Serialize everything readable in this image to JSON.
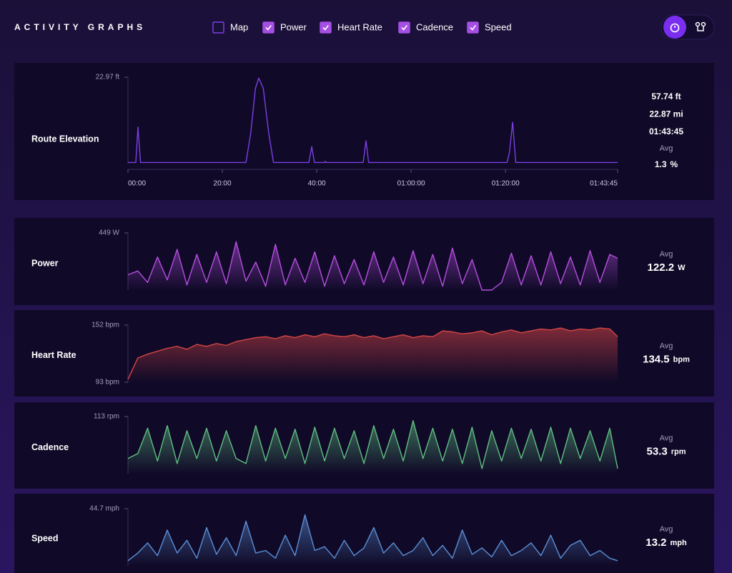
{
  "header": {
    "title": "ACTIVITY GRAPHS"
  },
  "filters": [
    {
      "label": "Map",
      "checked": false
    },
    {
      "label": "Power",
      "checked": true
    },
    {
      "label": "Heart Rate",
      "checked": true
    },
    {
      "label": "Cadence",
      "checked": true
    },
    {
      "label": "Speed",
      "checked": true
    }
  ],
  "chart_data": [
    {
      "type": "line",
      "label": "Route Elevation",
      "color": "#7b3fe4",
      "x": [
        0,
        100,
        127,
        160,
        250,
        1500,
        1560,
        1620,
        1663,
        1720,
        1790,
        1850,
        2300,
        2336,
        2370,
        2500,
        2510,
        2520,
        2990,
        3026,
        3060,
        4820,
        4850,
        4890,
        4930,
        6225
      ],
      "values": [
        0.3,
        0.3,
        9.7,
        0.3,
        0.3,
        0.3,
        8,
        20,
        22.7,
        20,
        8,
        0.3,
        0.3,
        4.5,
        0.3,
        0.3,
        0.6,
        0.3,
        0.3,
        6.1,
        0.3,
        0.3,
        3,
        11,
        0.3,
        0.3
      ],
      "xlim": [
        0,
        6225
      ],
      "xticks": [
        {
          "value": 0,
          "label": "00:00"
        },
        {
          "value": 1200,
          "label": "20:00"
        },
        {
          "value": 2400,
          "label": "40:00"
        },
        {
          "value": 3600,
          "label": "01:00:00"
        },
        {
          "value": 4800,
          "label": "01:20:00"
        },
        {
          "value": 6225,
          "label": "01:43:45"
        }
      ],
      "ylim": [
        0,
        22.97
      ],
      "yticks": [
        {
          "value": 22.97,
          "label": "22.97 ft"
        }
      ],
      "stats": [
        "57.74 ft",
        "22.87 mi",
        "01:43:45"
      ],
      "avg_label": "Avg",
      "avg": {
        "value": 1.3,
        "unit": "%"
      }
    },
    {
      "type": "line",
      "label": "Power",
      "color": "#b64ee0",
      "x": [
        0,
        125,
        250,
        375,
        500,
        625,
        750,
        875,
        1000,
        1125,
        1250,
        1375,
        1500,
        1625,
        1750,
        1875,
        2000,
        2125,
        2250,
        2375,
        2500,
        2625,
        2750,
        2875,
        3000,
        3125,
        3250,
        3375,
        3500,
        3625,
        3750,
        3875,
        4000,
        4125,
        4250,
        4375,
        4500,
        4625,
        4750,
        4875,
        5000,
        5125,
        5250,
        5375,
        5500,
        5625,
        5750,
        5875,
        6000,
        6125,
        6225
      ],
      "values": [
        120,
        150,
        60,
        260,
        80,
        320,
        40,
        280,
        60,
        300,
        50,
        380,
        70,
        220,
        30,
        360,
        40,
        250,
        60,
        300,
        30,
        270,
        50,
        240,
        40,
        300,
        60,
        260,
        40,
        310,
        50,
        280,
        30,
        330,
        50,
        240,
        0,
        0,
        60,
        290,
        40,
        270,
        40,
        300,
        50,
        260,
        40,
        310,
        60,
        280,
        250
      ],
      "xlim": [
        0,
        6225
      ],
      "ylim": [
        0,
        449
      ],
      "yticks": [
        {
          "value": 449,
          "label": "449 W"
        }
      ],
      "avg_label": "Avg",
      "avg": {
        "value": 122.2,
        "unit": "W"
      }
    },
    {
      "type": "line",
      "label": "Heart Rate",
      "color": "#d64545",
      "x": [
        0,
        125,
        250,
        375,
        500,
        625,
        750,
        875,
        1000,
        1125,
        1250,
        1375,
        1500,
        1625,
        1750,
        1875,
        2000,
        2125,
        2250,
        2375,
        2500,
        2625,
        2750,
        2875,
        3000,
        3125,
        3250,
        3375,
        3500,
        3625,
        3750,
        3875,
        4000,
        4125,
        4250,
        4375,
        4500,
        4625,
        4750,
        4875,
        5000,
        5125,
        5250,
        5375,
        5500,
        5625,
        5750,
        5875,
        6000,
        6125,
        6225
      ],
      "values": [
        96,
        118,
        122,
        125,
        128,
        130,
        127,
        132,
        130,
        133,
        131,
        135,
        137,
        139,
        140,
        138,
        141,
        139,
        142,
        140,
        143,
        141,
        140,
        142,
        139,
        141,
        138,
        140,
        142,
        139,
        141,
        140,
        146,
        145,
        143,
        144,
        146,
        142,
        145,
        147,
        144,
        146,
        148,
        147,
        149,
        146,
        148,
        147,
        149,
        148,
        140
      ],
      "xlim": [
        0,
        6225
      ],
      "ylim": [
        93,
        152
      ],
      "yticks": [
        {
          "value": 152,
          "label": "152 bpm"
        },
        {
          "value": 93,
          "label": "93 bpm"
        }
      ],
      "avg_label": "Avg",
      "avg": {
        "value": 134.5,
        "unit": "bpm"
      }
    },
    {
      "type": "line",
      "label": "Cadence",
      "color": "#5fbf80",
      "x": [
        0,
        125,
        250,
        375,
        500,
        625,
        750,
        875,
        1000,
        1125,
        1250,
        1375,
        1500,
        1625,
        1750,
        1875,
        2000,
        2125,
        2250,
        2375,
        2500,
        2625,
        2750,
        2875,
        3000,
        3125,
        3250,
        3375,
        3500,
        3625,
        3750,
        3875,
        4000,
        4125,
        4250,
        4375,
        4500,
        4625,
        4750,
        4875,
        5000,
        5125,
        5250,
        5375,
        5500,
        5625,
        5750,
        5875,
        6000,
        6125,
        6225
      ],
      "values": [
        30,
        40,
        90,
        25,
        95,
        20,
        85,
        30,
        90,
        25,
        85,
        30,
        20,
        95,
        25,
        90,
        30,
        88,
        20,
        92,
        25,
        90,
        30,
        85,
        20,
        95,
        30,
        88,
        25,
        105,
        30,
        90,
        25,
        88,
        20,
        92,
        10,
        85,
        25,
        90,
        30,
        88,
        25,
        92,
        20,
        90,
        30,
        85,
        25,
        90,
        10
      ],
      "xlim": [
        0,
        6225
      ],
      "ylim": [
        0,
        113
      ],
      "yticks": [
        {
          "value": 113,
          "label": "113 rpm"
        }
      ],
      "avg_label": "Avg",
      "avg": {
        "value": 53.3,
        "unit": "rpm"
      }
    },
    {
      "type": "line",
      "label": "Speed",
      "color": "#5b8fd6",
      "x": [
        0,
        125,
        250,
        375,
        500,
        625,
        750,
        875,
        1000,
        1125,
        1250,
        1375,
        1500,
        1625,
        1750,
        1875,
        2000,
        2125,
        2250,
        2375,
        2500,
        2625,
        2750,
        2875,
        3000,
        3125,
        3250,
        3375,
        3500,
        3625,
        3750,
        3875,
        4000,
        4125,
        4250,
        4375,
        4500,
        4625,
        4750,
        4875,
        5000,
        5125,
        5250,
        5375,
        5500,
        5625,
        5750,
        5875,
        6000,
        6125,
        6225
      ],
      "values": [
        4,
        10,
        18,
        8,
        28,
        10,
        20,
        6,
        30,
        9,
        22,
        8,
        35,
        10,
        12,
        6,
        24,
        8,
        40,
        12,
        15,
        6,
        20,
        8,
        14,
        30,
        10,
        18,
        8,
        12,
        22,
        8,
        16,
        6,
        28,
        9,
        14,
        7,
        20,
        8,
        12,
        18,
        8,
        24,
        6,
        16,
        20,
        8,
        12,
        6,
        4
      ],
      "xlim": [
        0,
        6225
      ],
      "ylim": [
        0,
        44.7
      ],
      "yticks": [
        {
          "value": 44.7,
          "label": "44.7 mph"
        }
      ],
      "avg_label": "Avg",
      "avg": {
        "value": 13.2,
        "unit": "mph"
      }
    }
  ]
}
